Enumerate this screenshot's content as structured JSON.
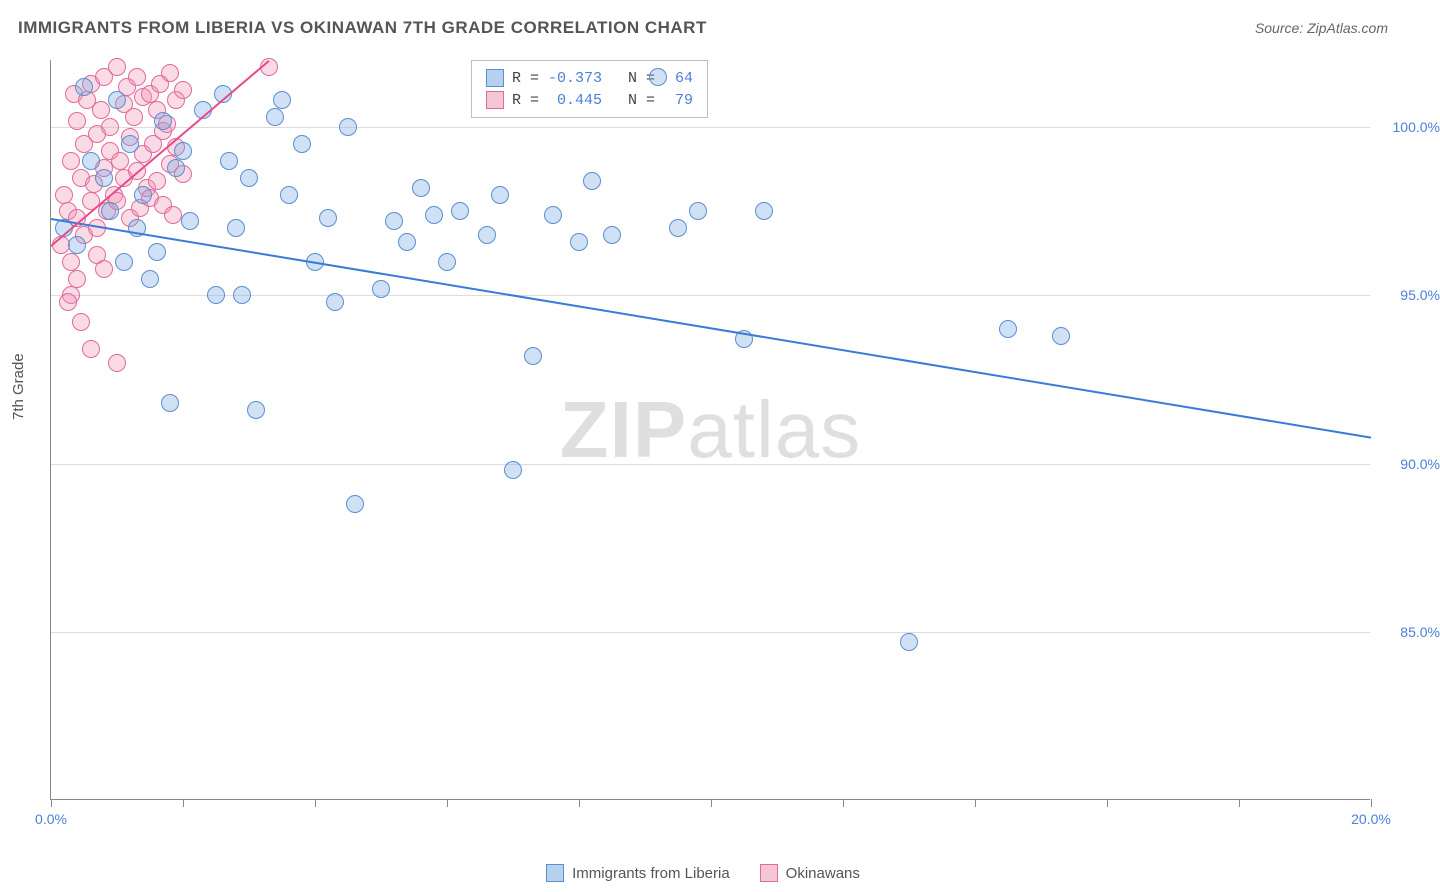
{
  "title": "IMMIGRANTS FROM LIBERIA VS OKINAWAN 7TH GRADE CORRELATION CHART",
  "source": "Source: ZipAtlas.com",
  "watermark_bold": "ZIP",
  "watermark_rest": "atlas",
  "ylabel": "7th Grade",
  "chart": {
    "type": "scatter",
    "xlim": [
      0,
      20
    ],
    "ylim": [
      80,
      102
    ],
    "xticks": [
      0,
      2,
      4,
      6,
      8,
      10,
      12,
      14,
      16,
      18,
      20
    ],
    "xtick_labels_shown": {
      "0": "0.0%",
      "20": "20.0%"
    },
    "yticks": [
      85,
      90,
      95,
      100
    ],
    "ytick_labels": [
      "85.0%",
      "90.0%",
      "95.0%",
      "100.0%"
    ],
    "background_color": "#ffffff",
    "grid_color": "#dddddd",
    "axis_color": "#888888",
    "tick_label_color": "#4a7fd8"
  },
  "series": [
    {
      "id": "liberia",
      "label": "Immigrants from Liberia",
      "marker_fill": "rgba(120,165,225,0.35)",
      "marker_stroke": "#5a8fd0",
      "swatch_fill": "#b8d0f0",
      "swatch_stroke": "#5a8fd0",
      "marker_radius": 9,
      "R": "-0.373",
      "N": "64",
      "trend": {
        "x1": 0,
        "y1": 97.3,
        "x2": 20,
        "y2": 90.8,
        "color": "#3a7bd5",
        "width": 2
      },
      "points": [
        [
          0.2,
          97.0
        ],
        [
          0.4,
          96.5
        ],
        [
          0.5,
          101.2
        ],
        [
          0.6,
          99.0
        ],
        [
          0.8,
          98.5
        ],
        [
          0.9,
          97.5
        ],
        [
          1.0,
          100.8
        ],
        [
          1.1,
          96.0
        ],
        [
          1.2,
          99.5
        ],
        [
          1.3,
          97.0
        ],
        [
          1.4,
          98.0
        ],
        [
          1.5,
          95.5
        ],
        [
          1.6,
          96.3
        ],
        [
          1.7,
          100.2
        ],
        [
          1.8,
          91.8
        ],
        [
          1.9,
          98.8
        ],
        [
          2.0,
          99.3
        ],
        [
          2.1,
          97.2
        ],
        [
          2.3,
          100.5
        ],
        [
          2.5,
          95.0
        ],
        [
          2.6,
          101.0
        ],
        [
          2.7,
          99.0
        ],
        [
          2.8,
          97.0
        ],
        [
          2.9,
          95.0
        ],
        [
          3.0,
          98.5
        ],
        [
          3.1,
          91.6
        ],
        [
          3.4,
          100.3
        ],
        [
          3.5,
          100.8
        ],
        [
          3.6,
          98.0
        ],
        [
          3.8,
          99.5
        ],
        [
          4.0,
          96.0
        ],
        [
          4.2,
          97.3
        ],
        [
          4.3,
          94.8
        ],
        [
          4.5,
          100.0
        ],
        [
          4.6,
          88.8
        ],
        [
          5.0,
          95.2
        ],
        [
          5.2,
          97.2
        ],
        [
          5.4,
          96.6
        ],
        [
          5.6,
          98.2
        ],
        [
          5.8,
          97.4
        ],
        [
          6.0,
          96.0
        ],
        [
          6.2,
          97.5
        ],
        [
          6.6,
          96.8
        ],
        [
          6.8,
          98.0
        ],
        [
          7.0,
          89.8
        ],
        [
          7.3,
          93.2
        ],
        [
          7.6,
          97.4
        ],
        [
          8.0,
          96.6
        ],
        [
          8.2,
          98.4
        ],
        [
          8.5,
          96.8
        ],
        [
          9.2,
          101.5
        ],
        [
          9.5,
          97.0
        ],
        [
          9.8,
          97.5
        ],
        [
          10.5,
          93.7
        ],
        [
          10.8,
          97.5
        ],
        [
          13.0,
          84.7
        ],
        [
          14.5,
          94.0
        ],
        [
          15.3,
          93.8
        ]
      ]
    },
    {
      "id": "okinawans",
      "label": "Okinawans",
      "marker_fill": "rgba(240,150,180,0.35)",
      "marker_stroke": "#e06a9a",
      "swatch_fill": "#f5c6d6",
      "swatch_stroke": "#e06a9a",
      "marker_radius": 9,
      "R": "0.445",
      "N": "79",
      "trend": {
        "x1": 0,
        "y1": 96.5,
        "x2": 3.3,
        "y2": 102,
        "color": "#e84a8a",
        "width": 2
      },
      "points": [
        [
          0.15,
          96.5
        ],
        [
          0.2,
          98.0
        ],
        [
          0.25,
          97.5
        ],
        [
          0.3,
          99.0
        ],
        [
          0.3,
          96.0
        ],
        [
          0.35,
          101.0
        ],
        [
          0.4,
          97.3
        ],
        [
          0.4,
          100.2
        ],
        [
          0.45,
          98.5
        ],
        [
          0.5,
          99.5
        ],
        [
          0.5,
          96.8
        ],
        [
          0.55,
          100.8
        ],
        [
          0.6,
          97.8
        ],
        [
          0.6,
          101.3
        ],
        [
          0.65,
          98.3
        ],
        [
          0.7,
          99.8
        ],
        [
          0.7,
          97.0
        ],
        [
          0.75,
          100.5
        ],
        [
          0.8,
          98.8
        ],
        [
          0.8,
          101.5
        ],
        [
          0.85,
          97.5
        ],
        [
          0.9,
          99.3
        ],
        [
          0.9,
          100.0
        ],
        [
          0.95,
          98.0
        ],
        [
          1.0,
          101.8
        ],
        [
          1.0,
          97.8
        ],
        [
          1.05,
          99.0
        ],
        [
          1.1,
          100.7
        ],
        [
          1.1,
          98.5
        ],
        [
          1.15,
          101.2
        ],
        [
          1.2,
          97.3
        ],
        [
          1.2,
          99.7
        ],
        [
          1.25,
          100.3
        ],
        [
          1.3,
          98.7
        ],
        [
          1.3,
          101.5
        ],
        [
          1.35,
          97.6
        ],
        [
          1.4,
          99.2
        ],
        [
          1.4,
          100.9
        ],
        [
          1.45,
          98.2
        ],
        [
          1.5,
          101.0
        ],
        [
          1.5,
          97.9
        ],
        [
          1.55,
          99.5
        ],
        [
          1.6,
          100.5
        ],
        [
          1.6,
          98.4
        ],
        [
          1.65,
          101.3
        ],
        [
          1.7,
          97.7
        ],
        [
          1.7,
          99.9
        ],
        [
          1.75,
          100.1
        ],
        [
          1.8,
          98.9
        ],
        [
          1.8,
          101.6
        ],
        [
          1.85,
          97.4
        ],
        [
          1.9,
          99.4
        ],
        [
          1.9,
          100.8
        ],
        [
          2.0,
          98.6
        ],
        [
          2.0,
          101.1
        ],
        [
          0.3,
          95.0
        ],
        [
          0.6,
          93.4
        ],
        [
          0.25,
          94.8
        ],
        [
          0.4,
          95.5
        ],
        [
          0.7,
          96.2
        ],
        [
          0.45,
          94.2
        ],
        [
          0.8,
          95.8
        ],
        [
          3.3,
          101.8
        ],
        [
          1.0,
          93.0
        ]
      ]
    }
  ],
  "bottom_legend": [
    {
      "series": "liberia"
    },
    {
      "series": "okinawans"
    }
  ]
}
